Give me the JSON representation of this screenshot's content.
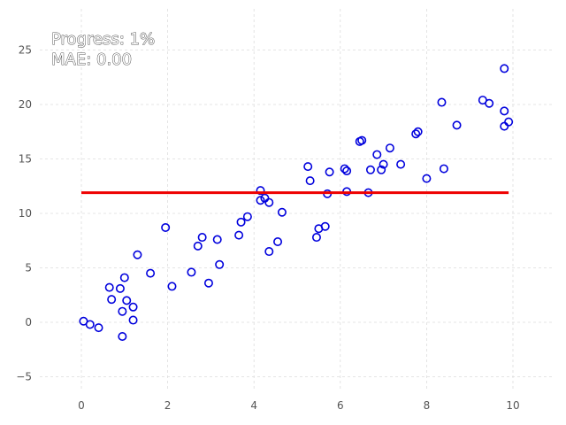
{
  "chart_data": {
    "type": "scatter",
    "title": "",
    "xlabel": "",
    "ylabel": "",
    "xlim": [
      -1,
      10.7
    ],
    "ylim": [
      -5.7,
      28
    ],
    "grid": true,
    "x_ticks": [
      "0",
      "2",
      "4",
      "6",
      "8",
      "10"
    ],
    "y_ticks": [
      "−5",
      "0",
      "5",
      "10",
      "15",
      "20",
      "25"
    ],
    "annotations": {
      "progress": "Progress: 1%",
      "mae": "MAE: 0.00"
    },
    "points": [
      [
        0.05,
        0.1
      ],
      [
        0.2,
        -0.2
      ],
      [
        0.4,
        -0.5
      ],
      [
        0.65,
        3.2
      ],
      [
        0.7,
        2.1
      ],
      [
        0.9,
        3.1
      ],
      [
        0.95,
        -1.3
      ],
      [
        0.95,
        1.0
      ],
      [
        1.0,
        4.1
      ],
      [
        1.05,
        2.0
      ],
      [
        1.2,
        1.4
      ],
      [
        1.2,
        0.2
      ],
      [
        1.3,
        6.2
      ],
      [
        1.6,
        4.5
      ],
      [
        1.95,
        8.7
      ],
      [
        2.1,
        3.3
      ],
      [
        2.55,
        4.6
      ],
      [
        2.7,
        7.0
      ],
      [
        2.8,
        7.8
      ],
      [
        2.95,
        3.6
      ],
      [
        3.15,
        7.6
      ],
      [
        3.2,
        5.3
      ],
      [
        3.65,
        8.0
      ],
      [
        3.7,
        9.2
      ],
      [
        3.85,
        9.7
      ],
      [
        4.15,
        12.1
      ],
      [
        4.15,
        11.2
      ],
      [
        4.25,
        11.4
      ],
      [
        4.35,
        11.0
      ],
      [
        4.35,
        6.5
      ],
      [
        4.55,
        7.4
      ],
      [
        4.65,
        10.1
      ],
      [
        5.25,
        14.3
      ],
      [
        5.3,
        13.0
      ],
      [
        5.45,
        7.8
      ],
      [
        5.5,
        8.6
      ],
      [
        5.65,
        8.8
      ],
      [
        5.7,
        11.8
      ],
      [
        5.75,
        13.8
      ],
      [
        6.1,
        14.1
      ],
      [
        6.15,
        13.9
      ],
      [
        6.15,
        12.0
      ],
      [
        6.45,
        16.6
      ],
      [
        6.5,
        16.7
      ],
      [
        6.65,
        11.9
      ],
      [
        6.7,
        14.0
      ],
      [
        6.85,
        15.4
      ],
      [
        6.95,
        14.0
      ],
      [
        7.0,
        14.5
      ],
      [
        7.15,
        16.0
      ],
      [
        7.4,
        14.5
      ],
      [
        7.75,
        17.3
      ],
      [
        7.8,
        17.5
      ],
      [
        8.0,
        13.2
      ],
      [
        8.35,
        20.2
      ],
      [
        8.4,
        14.1
      ],
      [
        8.7,
        18.1
      ],
      [
        9.3,
        20.4
      ],
      [
        9.45,
        20.1
      ],
      [
        9.8,
        23.3
      ],
      [
        9.8,
        19.4
      ],
      [
        9.8,
        18.0
      ],
      [
        9.9,
        18.4
      ]
    ],
    "fit_line": {
      "x": [
        0,
        9.9
      ],
      "y": [
        11.9,
        11.9
      ]
    },
    "colors": {
      "points": "#0000dd",
      "fit_line": "#ee0000",
      "grid": "#dddddd",
      "tick_text": "#555555"
    }
  }
}
